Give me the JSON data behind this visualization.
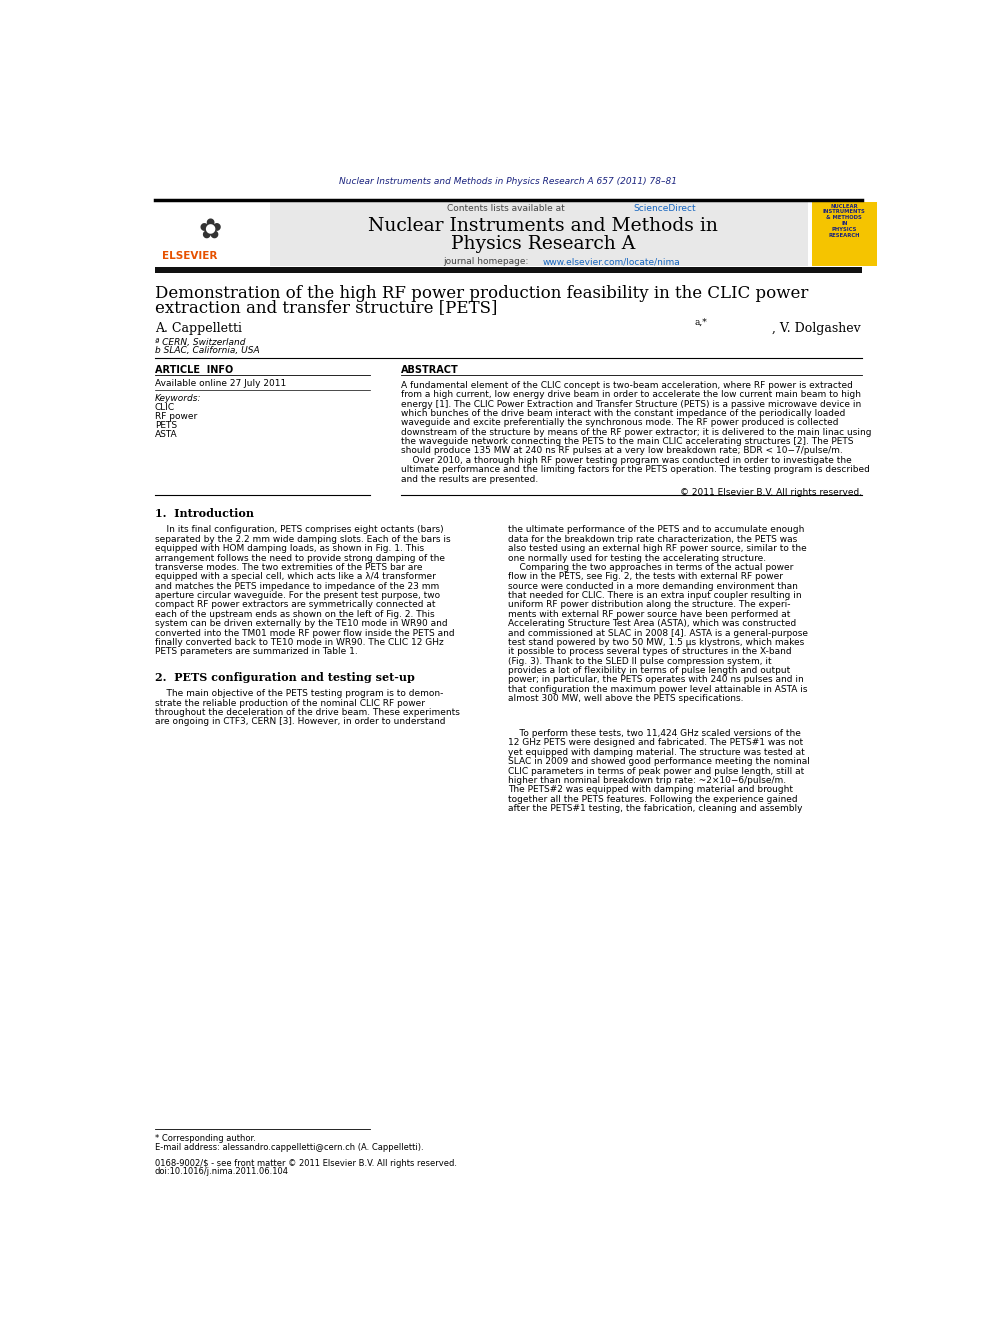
{
  "page_width": 9.92,
  "page_height": 13.23,
  "bg_color": "#ffffff",
  "top_citation": "Nuclear Instruments and Methods in Physics Research A 657 (2011) 78–81",
  "top_citation_color": "#1a237e",
  "header_bg": "#e8e8e8",
  "sciencedirect_color": "#1565c0",
  "header_url_color": "#1565c0",
  "journal_cover_bg": "#f5c400",
  "ref_color": "#1565c0",
  "keywords": [
    "CLIC",
    "RF power",
    "PETS",
    "ASTA"
  ],
  "copyright": "© 2011 Elsevier B.V. All rights reserved.",
  "abstract_lines": [
    "A fundamental element of the CLIC concept is two-beam acceleration, where RF power is extracted",
    "from a high current, low energy drive beam in order to accelerate the low current main beam to high",
    "energy [1]. The CLIC Power Extraction and Transfer Structure (PETS) is a passive microwave device in",
    "which bunches of the drive beam interact with the constant impedance of the periodically loaded",
    "waveguide and excite preferentially the synchronous mode. The RF power produced is collected",
    "downstream of the structure by means of the RF power extractor; it is delivered to the main linac using",
    "the waveguide network connecting the PETS to the main CLIC accelerating structures [2]. The PETS",
    "should produce 135 MW at 240 ns RF pulses at a very low breakdown rate; BDR < 10−7/pulse/m.",
    "    Over 2010, a thorough high RF power testing program was conducted in order to investigate the",
    "ultimate performance and the limiting factors for the PETS operation. The testing program is described",
    "and the results are presented."
  ],
  "s1_left_lines": [
    "    In its final configuration, PETS comprises eight octants (bars)",
    "separated by the 2.2 mm wide damping slots. Each of the bars is",
    "equipped with HOM damping loads, as shown in Fig. 1. This",
    "arrangement follows the need to provide strong damping of the",
    "transverse modes. The two extremities of the PETS bar are",
    "equipped with a special cell, which acts like a λ/4 transformer",
    "and matches the PETS impedance to impedance of the 23 mm",
    "aperture circular waveguide. For the present test purpose, two",
    "compact RF power extractors are symmetrically connected at",
    "each of the upstream ends as shown on the left of Fig. 2. This",
    "system can be driven externally by the TE10 mode in WR90 and",
    "converted into the TM01 mode RF power flow inside the PETS and",
    "finally converted back to TE10 mode in WR90. The CLIC 12 GHz",
    "PETS parameters are summarized in Table 1."
  ],
  "s1_right_lines": [
    "the ultimate performance of the PETS and to accumulate enough",
    "data for the breakdown trip rate characterization, the PETS was",
    "also tested using an external high RF power source, similar to the",
    "one normally used for testing the accelerating structure.",
    "    Comparing the two approaches in terms of the actual power",
    "flow in the PETS, see Fig. 2, the tests with external RF power",
    "source were conducted in a more demanding environment than",
    "that needed for CLIC. There is an extra input coupler resulting in",
    "uniform RF power distribution along the structure. The experi-",
    "ments with external RF power source have been performed at",
    "Accelerating Structure Test Area (ASTA), which was constructed",
    "and commissioned at SLAC in 2008 [4]. ASTA is a general-purpose",
    "test stand powered by two 50 MW, 1.5 μs klystrons, which makes",
    "it possible to process several types of structures in the X-band",
    "(Fig. 3). Thank to the SLED II pulse compression system, it",
    "provides a lot of flexibility in terms of pulse length and output",
    "power; in particular, the PETS operates with 240 ns pulses and in",
    "that configuration the maximum power level attainable in ASTA is",
    "almost 300 MW, well above the PETS specifications."
  ],
  "s2_left_lines": [
    "    The main objective of the PETS testing program is to demon-",
    "strate the reliable production of the nominal CLIC RF power",
    "throughout the deceleration of the drive beam. These experiments",
    "are ongoing in CTF3, CERN [3]. However, in order to understand"
  ],
  "s2_right_lines": [
    "    To perform these tests, two 11,424 GHz scaled versions of the",
    "12 GHz PETS were designed and fabricated. The PETS#1 was not",
    "yet equipped with damping material. The structure was tested at",
    "SLAC in 2009 and showed good performance meeting the nominal",
    "CLIC parameters in terms of peak power and pulse length, still at",
    "higher than nominal breakdown trip rate: ~2×10−6/pulse/m.",
    "The PETS#2 was equipped with damping material and brought",
    "together all the PETS features. Following the experience gained",
    "after the PETS#1 testing, the fabrication, cleaning and assembly"
  ]
}
